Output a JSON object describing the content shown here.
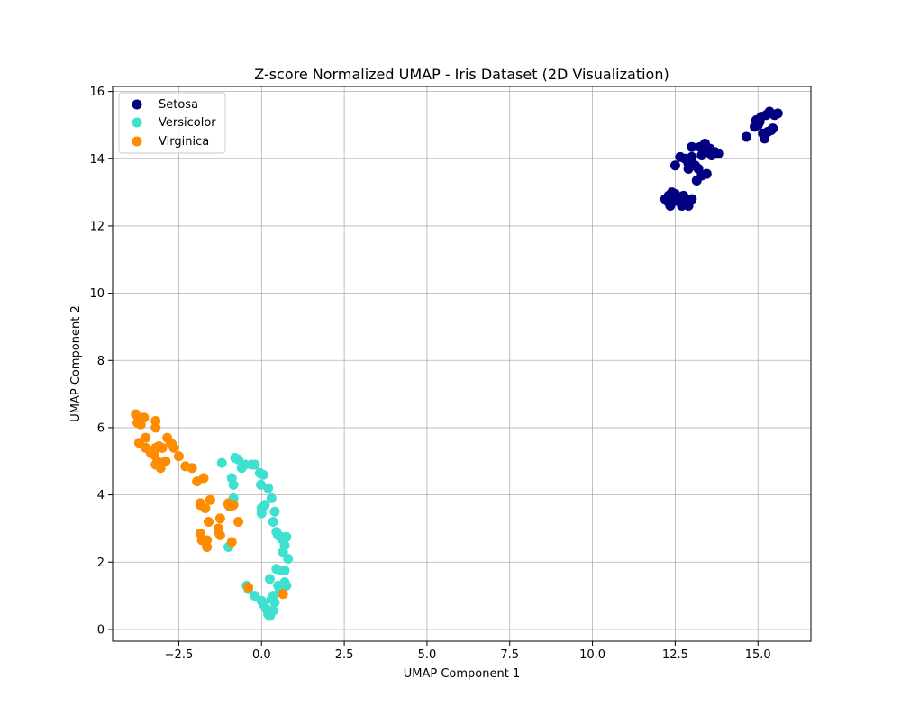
{
  "chart_data": {
    "type": "scatter",
    "title": "Z-score Normalized UMAP - Iris Dataset (2D Visualization)",
    "xlabel": "UMAP Component 1",
    "ylabel": "UMAP Component 2",
    "xlim": [
      -4.5,
      16.6
    ],
    "ylim": [
      -0.35,
      16.15
    ],
    "xticks": [
      -2.5,
      0.0,
      2.5,
      5.0,
      7.5,
      10.0,
      12.5,
      15.0
    ],
    "xtick_labels": [
      "−2.5",
      "0.0",
      "2.5",
      "5.0",
      "7.5",
      "10.0",
      "12.5",
      "15.0"
    ],
    "yticks": [
      0,
      2,
      4,
      6,
      8,
      10,
      12,
      14,
      16
    ],
    "ytick_labels": [
      "0",
      "2",
      "4",
      "6",
      "8",
      "10",
      "12",
      "14",
      "16"
    ],
    "grid": true,
    "legend_position": "top-left",
    "series": [
      {
        "name": "Setosa",
        "color": "#000080",
        "points": [
          [
            12.2,
            12.8
          ],
          [
            12.3,
            12.9
          ],
          [
            12.4,
            12.7
          ],
          [
            12.35,
            12.6
          ],
          [
            12.5,
            12.75
          ],
          [
            12.4,
            13.0
          ],
          [
            12.7,
            12.6
          ],
          [
            12.8,
            12.7
          ],
          [
            12.75,
            12.9
          ],
          [
            12.9,
            12.6
          ],
          [
            13.0,
            12.8
          ],
          [
            12.3,
            12.7
          ],
          [
            12.5,
            12.95
          ],
          [
            12.6,
            12.8
          ],
          [
            12.85,
            12.65
          ],
          [
            12.5,
            13.8
          ],
          [
            12.65,
            14.05
          ],
          [
            12.8,
            14.0
          ],
          [
            12.9,
            13.7
          ],
          [
            13.0,
            14.35
          ],
          [
            13.1,
            13.8
          ],
          [
            13.2,
            13.7
          ],
          [
            13.25,
            14.35
          ],
          [
            13.4,
            14.45
          ],
          [
            13.5,
            14.2
          ],
          [
            13.6,
            14.1
          ],
          [
            13.7,
            14.2
          ],
          [
            13.8,
            14.15
          ],
          [
            13.3,
            14.1
          ],
          [
            13.15,
            13.35
          ],
          [
            13.3,
            13.5
          ],
          [
            13.45,
            13.55
          ],
          [
            13.0,
            14.05
          ],
          [
            12.9,
            13.85
          ],
          [
            13.55,
            14.3
          ],
          [
            14.65,
            14.65
          ],
          [
            14.9,
            14.95
          ],
          [
            14.95,
            15.15
          ],
          [
            15.1,
            15.25
          ],
          [
            15.2,
            14.6
          ],
          [
            15.3,
            14.8
          ],
          [
            15.35,
            15.4
          ],
          [
            15.45,
            14.9
          ],
          [
            15.5,
            15.3
          ],
          [
            15.6,
            15.35
          ],
          [
            15.0,
            15.0
          ],
          [
            15.15,
            14.75
          ],
          [
            15.25,
            15.3
          ],
          [
            15.4,
            14.85
          ],
          [
            15.05,
            15.1
          ]
        ]
      },
      {
        "name": "Versicolor",
        "color": "#40E0D0",
        "points": [
          [
            -1.2,
            4.95
          ],
          [
            -0.8,
            5.1
          ],
          [
            -0.7,
            5.05
          ],
          [
            -0.6,
            4.8
          ],
          [
            -0.5,
            4.9
          ],
          [
            -0.3,
            4.9
          ],
          [
            -0.05,
            4.65
          ],
          [
            0.05,
            4.6
          ],
          [
            -0.9,
            4.5
          ],
          [
            -0.85,
            4.3
          ],
          [
            -0.85,
            3.9
          ],
          [
            -0.02,
            4.3
          ],
          [
            0.2,
            4.2
          ],
          [
            0.3,
            3.9
          ],
          [
            0.1,
            3.7
          ],
          [
            0.0,
            3.45
          ],
          [
            0.4,
            3.5
          ],
          [
            0.35,
            3.2
          ],
          [
            0.5,
            2.8
          ],
          [
            0.6,
            2.7
          ],
          [
            0.75,
            2.75
          ],
          [
            0.7,
            2.5
          ],
          [
            0.65,
            2.3
          ],
          [
            0.8,
            2.1
          ],
          [
            -1.0,
            2.45
          ],
          [
            0.45,
            1.8
          ],
          [
            0.6,
            1.75
          ],
          [
            0.7,
            1.75
          ],
          [
            0.25,
            1.5
          ],
          [
            0.5,
            1.3
          ],
          [
            0.7,
            1.4
          ],
          [
            0.75,
            1.3
          ],
          [
            -0.45,
            1.3
          ],
          [
            -0.4,
            1.2
          ],
          [
            -0.2,
            1.0
          ],
          [
            0.0,
            0.85
          ],
          [
            0.05,
            0.75
          ],
          [
            0.3,
            0.9
          ],
          [
            0.35,
            1.0
          ],
          [
            0.3,
            0.5
          ],
          [
            0.25,
            0.4
          ],
          [
            0.2,
            0.45
          ],
          [
            0.35,
            0.55
          ],
          [
            0.15,
            0.6
          ],
          [
            0.4,
            0.8
          ],
          [
            0.6,
            2.75
          ],
          [
            0.45,
            2.9
          ],
          [
            0.0,
            3.6
          ],
          [
            -0.2,
            4.9
          ],
          [
            0.55,
            1.15
          ]
        ]
      },
      {
        "name": "Virginica",
        "color": "#FF8C00",
        "points": [
          [
            -3.8,
            6.4
          ],
          [
            -3.7,
            6.2
          ],
          [
            -3.65,
            6.1
          ],
          [
            -3.55,
            6.3
          ],
          [
            -3.2,
            6.2
          ],
          [
            -3.2,
            6.0
          ],
          [
            -3.5,
            5.7
          ],
          [
            -3.7,
            5.55
          ],
          [
            -3.5,
            5.4
          ],
          [
            -3.3,
            5.3
          ],
          [
            -3.2,
            5.4
          ],
          [
            -3.1,
            5.45
          ],
          [
            -3.0,
            5.4
          ],
          [
            -2.85,
            5.7
          ],
          [
            -2.75,
            5.55
          ],
          [
            -2.65,
            5.4
          ],
          [
            -2.5,
            5.15
          ],
          [
            -3.25,
            5.2
          ],
          [
            -3.2,
            4.9
          ],
          [
            -3.05,
            4.8
          ],
          [
            -2.9,
            5.0
          ],
          [
            -3.15,
            5.0
          ],
          [
            -2.3,
            4.85
          ],
          [
            -2.1,
            4.8
          ],
          [
            -1.95,
            4.4
          ],
          [
            -1.75,
            4.5
          ],
          [
            -1.85,
            3.75
          ],
          [
            -1.7,
            3.6
          ],
          [
            -1.55,
            3.85
          ],
          [
            -1.0,
            3.75
          ],
          [
            -0.85,
            3.7
          ],
          [
            -0.95,
            3.65
          ],
          [
            -0.7,
            3.2
          ],
          [
            -1.6,
            3.2
          ],
          [
            -1.25,
            3.3
          ],
          [
            -1.3,
            2.9
          ],
          [
            -1.25,
            2.8
          ],
          [
            -1.85,
            2.85
          ],
          [
            -1.8,
            2.65
          ],
          [
            -1.65,
            2.65
          ],
          [
            -1.65,
            2.45
          ],
          [
            -0.9,
            2.6
          ],
          [
            -0.4,
            1.25
          ],
          [
            0.65,
            1.05
          ],
          [
            -2.7,
            5.5
          ],
          [
            -3.35,
            5.25
          ],
          [
            -3.75,
            6.15
          ],
          [
            -1.0,
            3.7
          ],
          [
            -1.3,
            3.0
          ],
          [
            -1.85,
            3.7
          ]
        ]
      }
    ]
  }
}
